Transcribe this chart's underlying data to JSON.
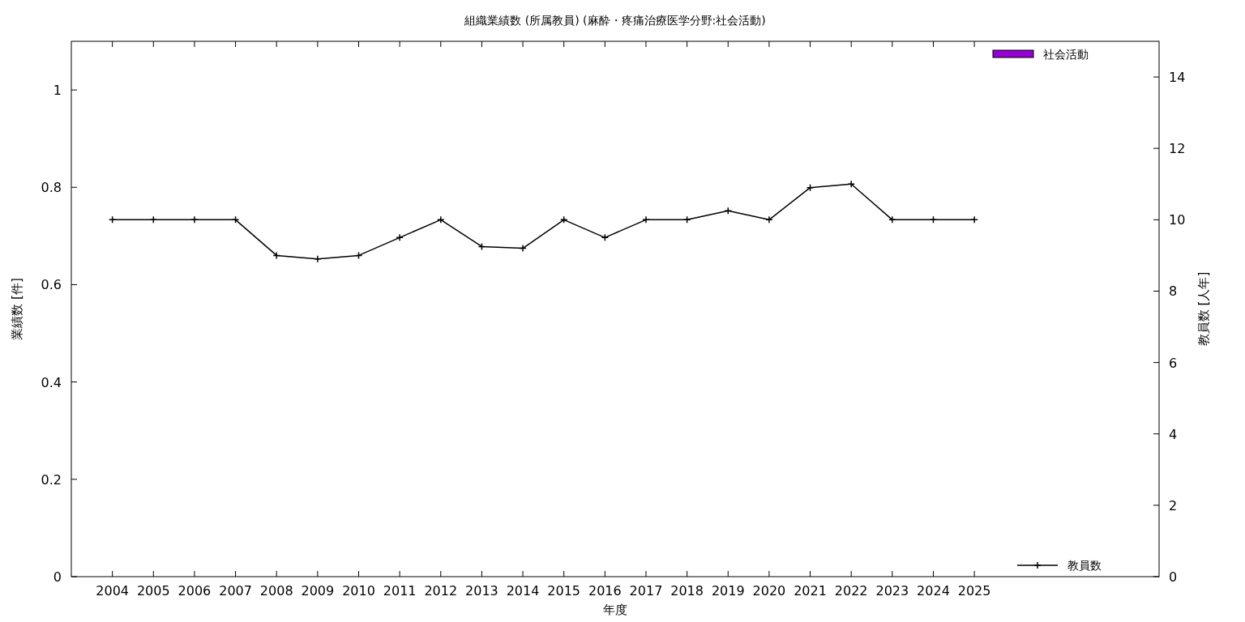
{
  "chart_data": {
    "type": "bar",
    "title": "組織業績数 (所属教員) (麻酔・疼痛治療医学分野:社会活動)",
    "xlabel": "年度",
    "ylabel": "業績数 [件]",
    "y2label": "教員数 [人年]",
    "x": [
      2004,
      2005,
      2006,
      2007,
      2008,
      2009,
      2010,
      2011,
      2012,
      2013,
      2014,
      2015,
      2016,
      2017,
      2018,
      2019,
      2020,
      2021,
      2022,
      2023,
      2024,
      2025
    ],
    "xlim": [
      2003,
      2029.5
    ],
    "xticks": [
      2004,
      2005,
      2006,
      2007,
      2008,
      2009,
      2010,
      2011,
      2012,
      2013,
      2014,
      2015,
      2016,
      2017,
      2018,
      2019,
      2020,
      2021,
      2022,
      2023,
      2024,
      2025
    ],
    "ylim": [
      0,
      1.1
    ],
    "yticks": [
      0,
      0.2,
      0.4,
      0.6,
      0.8,
      1
    ],
    "y2lim": [
      0,
      15
    ],
    "y2ticks": [
      0,
      2,
      4,
      6,
      8,
      10,
      12,
      14
    ],
    "series": [
      {
        "name": "社会活動",
        "color": "#9400d3",
        "values": [
          0,
          0,
          0,
          0,
          0,
          0,
          0,
          0,
          0,
          0,
          0,
          0,
          0,
          0,
          0,
          0,
          0,
          0,
          0,
          0,
          0,
          0
        ]
      },
      {
        "name": "教員数",
        "type": "line",
        "axis": "y2",
        "color": "#000000",
        "marker": "cross",
        "values": [
          10,
          10,
          10,
          10,
          9,
          8.9,
          9,
          9.5,
          10,
          9.25,
          9.2,
          10,
          9.5,
          10,
          10,
          10.25,
          10,
          10.9,
          11,
          10,
          10,
          10
        ]
      }
    ],
    "legend": "right",
    "grid": false
  }
}
